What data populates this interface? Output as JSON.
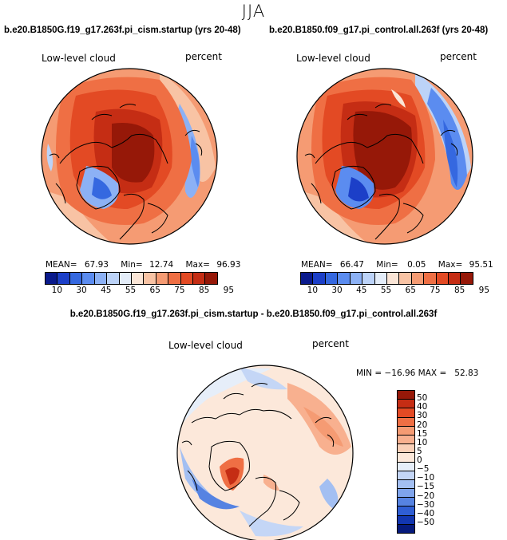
{
  "season": "JJA",
  "panels": [
    {
      "title": "b.e20.B1850G.f19_g17.263f.pi_cism.startup (yrs 20-48)",
      "variable": "Low-level cloud",
      "units": "percent",
      "mean_label": "MEAN=",
      "mean": "67.93",
      "min_label": "Min=",
      "min": "12.74",
      "max_label": "Max=",
      "max": "96.93"
    },
    {
      "title": "b.e20.B1850.f09_g17.pi_control.all.263f (yrs 20-48)",
      "variable": "Low-level cloud",
      "units": "percent",
      "mean_label": "MEAN=",
      "mean": "66.47",
      "min_label": "Min=",
      "min": "0.05",
      "max_label": "Max=",
      "max": "95.51"
    }
  ],
  "abs_colorbar": {
    "ticks": [
      "10",
      "30",
      "45",
      "55",
      "65",
      "75",
      "85",
      "95"
    ],
    "colors": [
      "#0a1a8c",
      "#1c3fc8",
      "#3568e0",
      "#5b8cf0",
      "#8cb1f5",
      "#bcd3f8",
      "#e3ecf8",
      "#fae5d6",
      "#f8c3a4",
      "#f59b73",
      "#ef6f44",
      "#e34a24",
      "#c52d14",
      "#961808"
    ]
  },
  "diff_panel": {
    "title": "b.e20.B1850G.f19_g17.263f.pi_cism.startup - b.e20.B1850.f09_g17.pi_control.all.263f",
    "variable": "Low-level cloud",
    "units": "percent",
    "minmax": "MIN = −16.96 MAX =   52.83",
    "colorbar_ticks": [
      "50",
      "40",
      "30",
      "20",
      "15",
      "10",
      "5",
      "0",
      "−5",
      "−10",
      "−15",
      "−20",
      "−30",
      "−40",
      "−50"
    ],
    "colorbar_colors": [
      "#961808",
      "#c52d14",
      "#e34a24",
      "#ef6f44",
      "#f59b73",
      "#f8b08f",
      "#fad0b8",
      "#fce8da",
      "#e6eef9",
      "#c4d6f6",
      "#a3bff2",
      "#7fa4ec",
      "#5683e2",
      "#2f5ed4",
      "#1236b0",
      "#061a7c"
    ]
  }
}
